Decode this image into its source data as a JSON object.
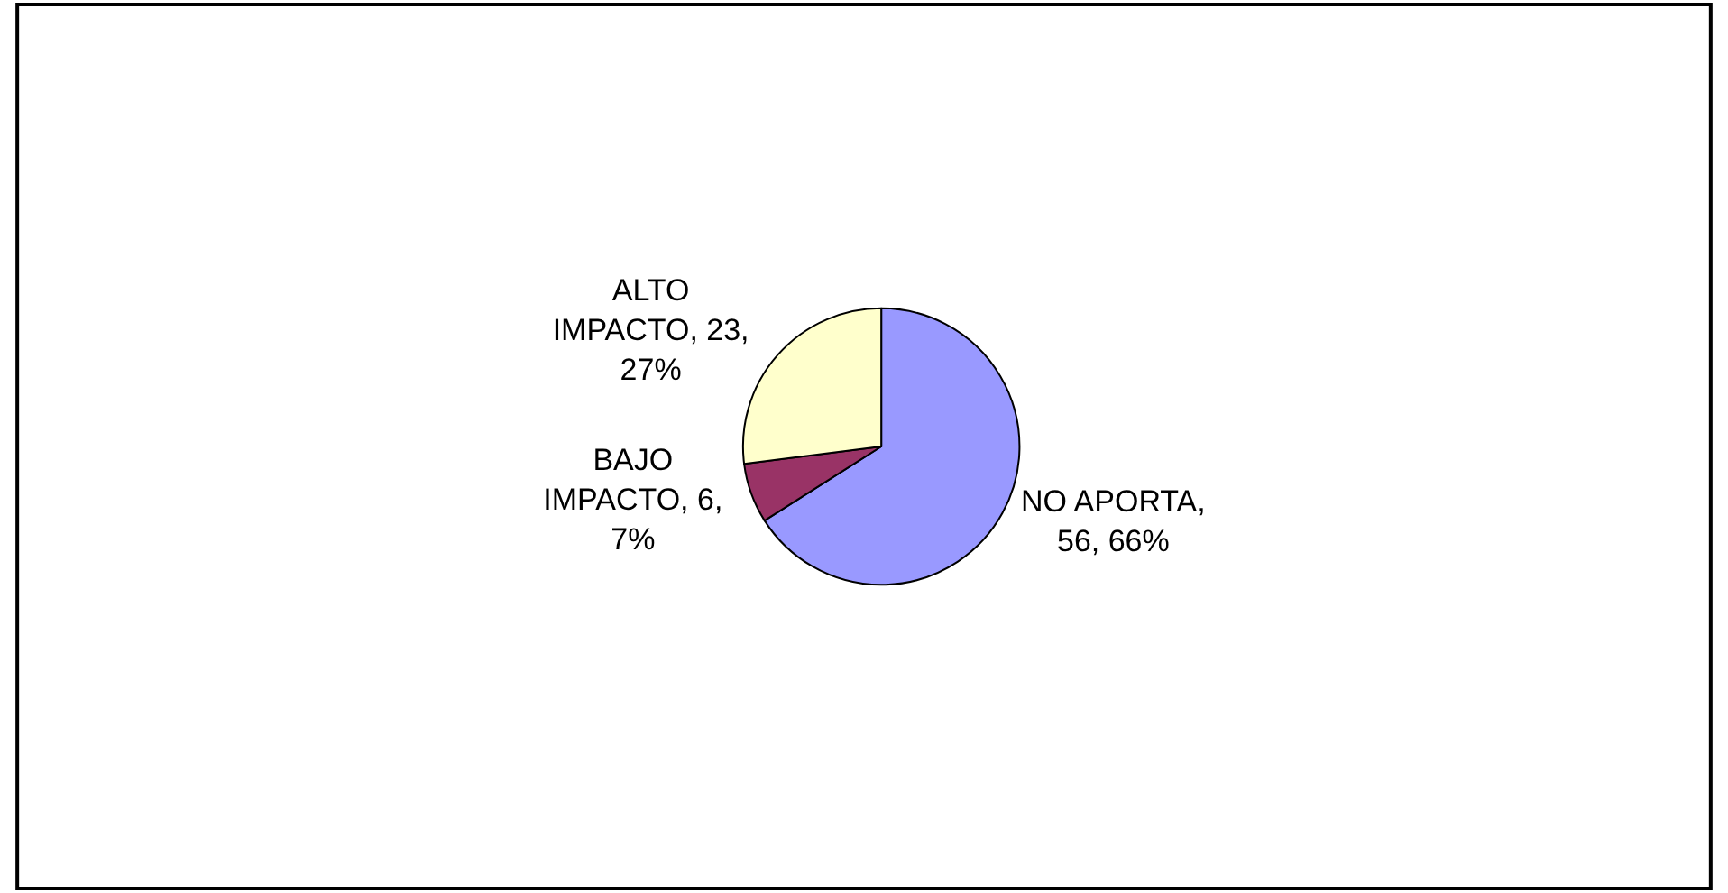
{
  "chart_data": {
    "type": "pie",
    "categories": [
      "NO APORTA, 56, 66%",
      "BAJO IMPACTO, 6, 7%",
      "ALTO IMPACTO, 23, 27%"
    ],
    "values": [
      66,
      7,
      27
    ],
    "colors": [
      "#9999ff",
      "#993366",
      "#ffffcc"
    ],
    "legend": false
  }
}
